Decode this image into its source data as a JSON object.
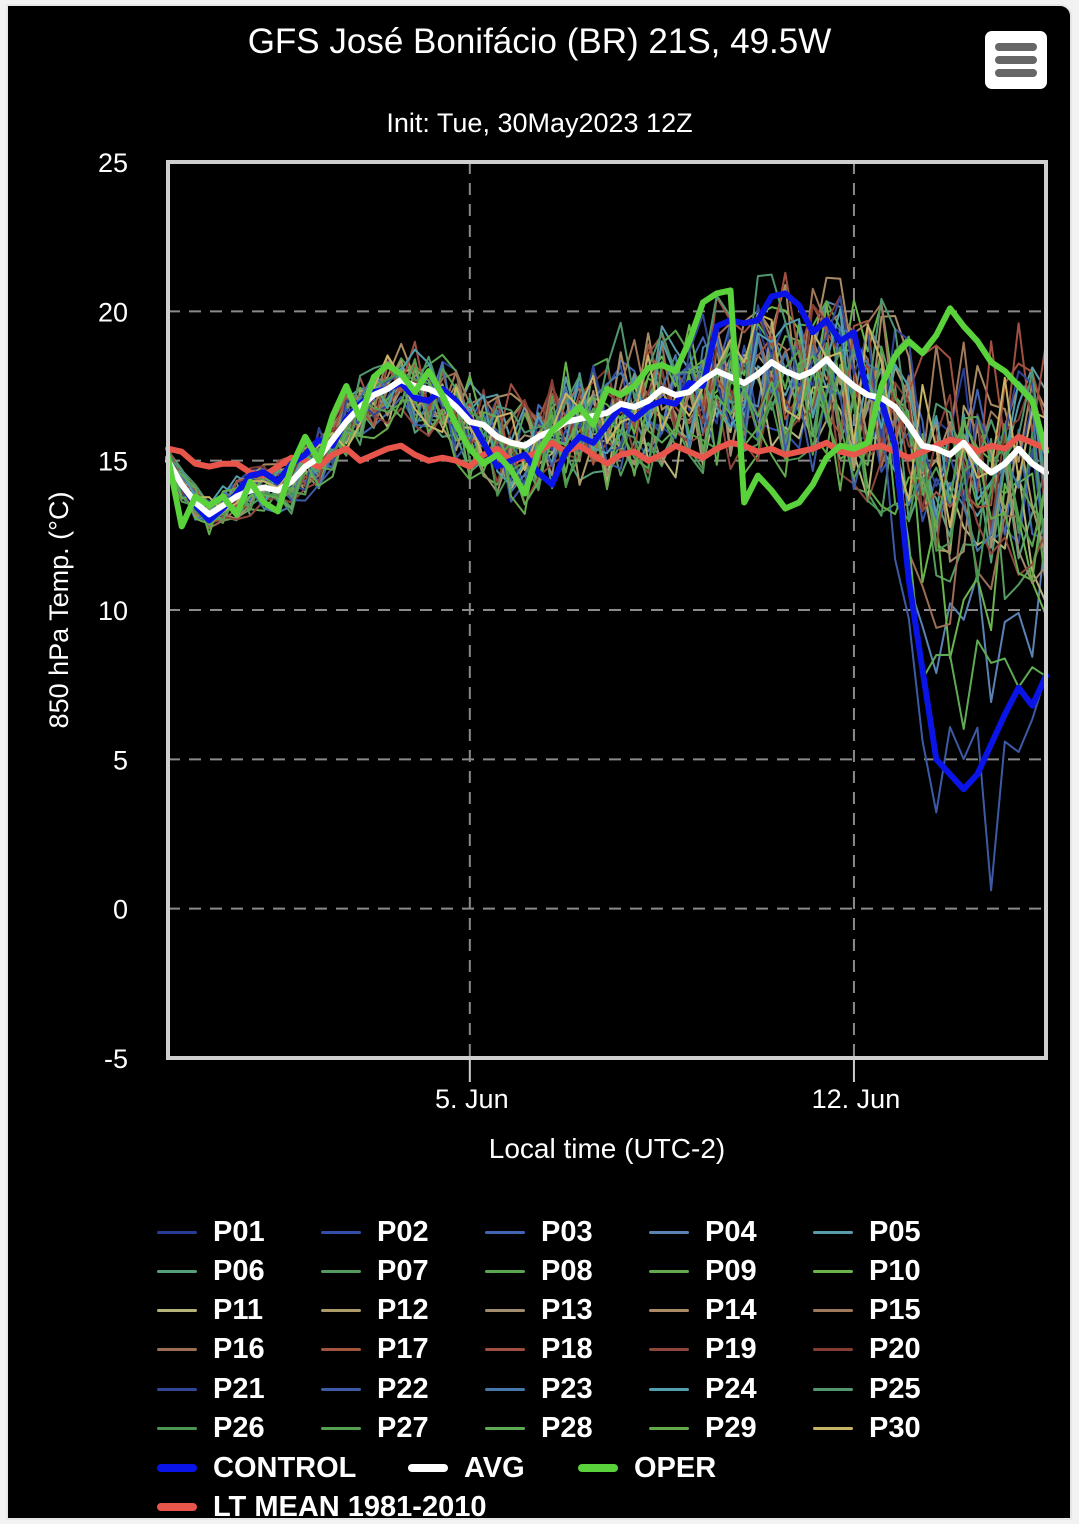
{
  "header": {
    "title": "GFS José Bonifácio (BR) 21S, 49.5W",
    "subtitle": "Init: Tue, 30May2023 12Z",
    "menu_icon": "hamburger-menu-icon"
  },
  "chart_data": {
    "type": "line",
    "title": "GFS José Bonifácio (BR) 21S, 49.5W",
    "subtitle": "Init: Tue, 30May2023 12Z",
    "xlabel": "Local time (UTC-2)",
    "ylabel": "850 hPa Temp. (°C)",
    "ylim": [
      -5,
      25
    ],
    "yticks": [
      "25",
      "20",
      "15",
      "10",
      "5",
      "0",
      "-5"
    ],
    "ytick_values": [
      25,
      20,
      15,
      10,
      5,
      0,
      -5
    ],
    "x_unit": "hours after 30 May 10:00 local",
    "xlim": [
      0,
      384
    ],
    "x_step_hours": 6,
    "xticks": [
      {
        "label": "5. Jun",
        "hour": 132
      },
      {
        "label": "12. Jun",
        "hour": 300
      }
    ],
    "grid": true,
    "legend_position": "bottom",
    "series": [
      {
        "name": "CONTROL",
        "color": "#0a14e6",
        "width": "thick",
        "values": [
          15.0,
          14.2,
          13.5,
          13.0,
          13.4,
          13.9,
          14.5,
          14.6,
          14.3,
          14.9,
          15.2,
          15.7,
          15.5,
          16.4,
          16.9,
          17.3,
          17.4,
          17.6,
          17.1,
          17.0,
          17.4,
          17.0,
          16.4,
          15.6,
          14.8,
          15.0,
          15.2,
          14.6,
          14.2,
          15.3,
          15.8,
          15.6,
          16.2,
          16.8,
          16.4,
          16.8,
          17.0,
          16.9,
          17.6,
          17.5,
          19.5,
          19.7,
          19.6,
          19.7,
          20.5,
          20.6,
          20.2,
          19.3,
          19.7,
          19.0,
          19.3,
          17.2,
          17.0,
          15.5,
          11.0,
          8.0,
          5.0,
          4.5,
          4.0,
          4.5,
          5.5,
          6.5,
          7.4,
          6.8,
          7.8
        ]
      },
      {
        "name": "AVG",
        "color": "#ffffff",
        "width": "thick",
        "values": [
          15.0,
          14.2,
          13.6,
          13.2,
          13.5,
          13.8,
          14.0,
          14.1,
          14.0,
          14.3,
          14.8,
          15.1,
          15.7,
          16.3,
          16.8,
          17.2,
          17.4,
          17.7,
          17.5,
          17.4,
          17.2,
          16.8,
          16.3,
          16.2,
          15.8,
          15.6,
          15.5,
          15.8,
          16.0,
          16.3,
          16.4,
          16.5,
          16.6,
          16.9,
          16.8,
          17.0,
          17.4,
          17.2,
          17.3,
          17.7,
          18.0,
          17.8,
          17.6,
          17.9,
          18.3,
          18.0,
          17.8,
          18.0,
          18.4,
          17.9,
          17.5,
          17.2,
          17.1,
          16.8,
          16.2,
          15.5,
          15.4,
          15.2,
          15.6,
          15.0,
          14.6,
          14.9,
          15.4,
          14.9,
          14.6
        ]
      },
      {
        "name": "OPER",
        "color": "#5ad23c",
        "width": "thick",
        "values": [
          15.1,
          12.8,
          13.8,
          13.5,
          13.8,
          13.2,
          14.3,
          13.6,
          13.3,
          14.8,
          15.8,
          15.0,
          16.5,
          17.5,
          16.4,
          17.8,
          18.2,
          17.9,
          17.3,
          18.0,
          17.2,
          16.2,
          15.4,
          14.9,
          15.2,
          14.7,
          13.9,
          15.3,
          16.0,
          16.4,
          16.8,
          16.2,
          17.4,
          17.2,
          17.5,
          18.1,
          18.2,
          18.0,
          19.0,
          20.3,
          20.6,
          20.7,
          13.6,
          14.5,
          14.0,
          13.4,
          13.6,
          14.2,
          15.1,
          15.5,
          15.4,
          15.6,
          17.5,
          18.5,
          19.0,
          18.6,
          19.2,
          20.1,
          19.5,
          19.0,
          18.3,
          18.0,
          17.5,
          17.0,
          15.3
        ]
      },
      {
        "name": "LT MEAN 1981-2010",
        "color": "#e8554a",
        "width": "thick",
        "values": [
          15.4,
          15.3,
          14.9,
          14.8,
          14.9,
          14.9,
          14.6,
          14.5,
          14.8,
          15.1,
          15.0,
          14.8,
          15.2,
          15.4,
          15.0,
          15.2,
          15.4,
          15.5,
          15.2,
          15.0,
          15.1,
          15.0,
          14.8,
          15.2,
          15.4,
          15.0,
          15.1,
          15.3,
          15.6,
          15.3,
          15.5,
          15.2,
          14.9,
          15.2,
          15.3,
          15.0,
          15.2,
          15.5,
          15.3,
          15.1,
          15.4,
          15.6,
          15.5,
          15.3,
          15.4,
          15.2,
          15.3,
          15.4,
          15.6,
          15.3,
          15.2,
          15.4,
          15.5,
          15.3,
          15.1,
          15.3,
          15.5,
          15.7,
          15.6,
          15.3,
          15.5,
          15.4,
          15.8,
          15.6,
          15.4
        ]
      }
    ],
    "members": [
      {
        "name": "P01",
        "color": "#283c96"
      },
      {
        "name": "P02",
        "color": "#3250aa"
      },
      {
        "name": "P03",
        "color": "#4164b4"
      },
      {
        "name": "P04",
        "color": "#5a82b4"
      },
      {
        "name": "P05",
        "color": "#5a9baa"
      },
      {
        "name": "P06",
        "color": "#55a078"
      },
      {
        "name": "P07",
        "color": "#559b5f"
      },
      {
        "name": "P08",
        "color": "#5aa550"
      },
      {
        "name": "P09",
        "color": "#64aa50"
      },
      {
        "name": "P10",
        "color": "#69b44b"
      },
      {
        "name": "P11",
        "color": "#b4b478"
      },
      {
        "name": "P12",
        "color": "#aa9b69"
      },
      {
        "name": "P13",
        "color": "#a08c6e"
      },
      {
        "name": "P14",
        "color": "#aa8c64"
      },
      {
        "name": "P15",
        "color": "#a0785a"
      },
      {
        "name": "P16",
        "color": "#9b6e55"
      },
      {
        "name": "P17",
        "color": "#a0553c"
      },
      {
        "name": "P18",
        "color": "#a05041"
      },
      {
        "name": "P19",
        "color": "#8c463c"
      },
      {
        "name": "P20",
        "color": "#823c32"
      },
      {
        "name": "P21",
        "color": "#324696"
      },
      {
        "name": "P22",
        "color": "#3c5aa5"
      },
      {
        "name": "P23",
        "color": "#4678aa"
      },
      {
        "name": "P24",
        "color": "#50a0af"
      },
      {
        "name": "P25",
        "color": "#50966e"
      },
      {
        "name": "P26",
        "color": "#4b9650"
      },
      {
        "name": "P27",
        "color": "#55a050"
      },
      {
        "name": "P28",
        "color": "#5faa55"
      },
      {
        "name": "P29",
        "color": "#64aa4b"
      },
      {
        "name": "P30",
        "color": "#c8b464"
      }
    ],
    "member_spread_note": "30 perturbed members scatter roughly 12-20 °C through 11 Jun; several drop to ~0-8 °C on 13-14 Jun, minimum near -0.5 °C"
  },
  "legend": {
    "items": [
      "P01",
      "P02",
      "P03",
      "P04",
      "P05",
      "P06",
      "P07",
      "P08",
      "P09",
      "P10",
      "P11",
      "P12",
      "P13",
      "P14",
      "P15",
      "P16",
      "P17",
      "P18",
      "P19",
      "P20",
      "P21",
      "P22",
      "P23",
      "P24",
      "P25",
      "P26",
      "P27",
      "P28",
      "P29",
      "P30",
      "CONTROL",
      "AVG",
      "OPER",
      "LT MEAN 1981-2010"
    ]
  }
}
